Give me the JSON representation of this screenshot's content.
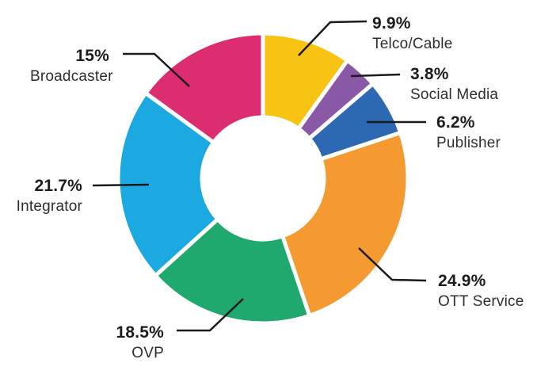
{
  "chart_data": {
    "type": "pie",
    "variant": "donut",
    "title": "",
    "background": "#ffffff",
    "leader_line_color": "#1b1b1b",
    "pct_text_color": "#1c1c1c",
    "name_text_color": "#2e2e2e",
    "start_angle_deg": 0,
    "direction": "clockwise",
    "hole_ratio": 0.42,
    "total": 100,
    "categories": [
      "Telco/Cable",
      "Social Media",
      "Publisher",
      "OTT Service",
      "OVP",
      "Integrator",
      "Broadcaster"
    ],
    "values": [
      9.9,
      3.8,
      6.2,
      24.9,
      18.5,
      21.7,
      15
    ],
    "segments": [
      {
        "name": "Telco/Cable",
        "value": 9.9,
        "pct_label": "9.9%",
        "color": "#F8C414"
      },
      {
        "name": "Social Media",
        "value": 3.8,
        "pct_label": "3.8%",
        "color": "#8959A8"
      },
      {
        "name": "Publisher",
        "value": 6.2,
        "pct_label": "6.2%",
        "color": "#2D68B2"
      },
      {
        "name": "OTT Service",
        "value": 24.9,
        "pct_label": "24.9%",
        "color": "#F59A31"
      },
      {
        "name": "OVP",
        "value": 18.5,
        "pct_label": "18.5%",
        "color": "#1FA96E"
      },
      {
        "name": "Integrator",
        "value": 21.7,
        "pct_label": "21.7%",
        "color": "#1CA8E0"
      },
      {
        "name": "Broadcaster",
        "value": 15,
        "pct_label": "15%",
        "color": "#DB2D6F"
      }
    ]
  }
}
